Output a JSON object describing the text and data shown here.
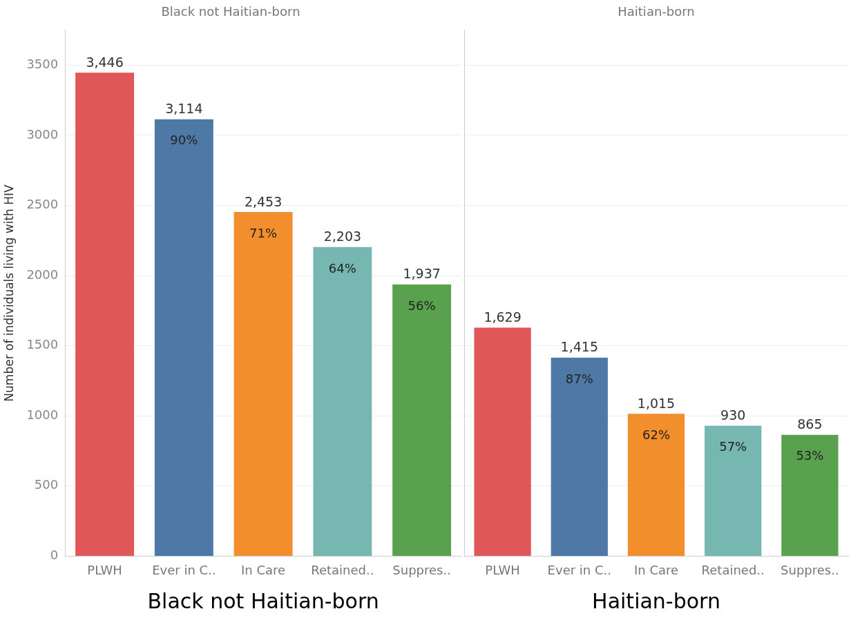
{
  "chart_data": [
    {
      "type": "bar",
      "title": "Black not Haitian-born",
      "xlabel": "Black not Haitian-born",
      "ylabel": "Number of individuals living with HIV",
      "categories": [
        "PLWH",
        "Ever in C..",
        "In Care",
        "Retained..",
        "Suppres.."
      ],
      "values": [
        3446,
        3114,
        2453,
        2203,
        1937
      ],
      "colors": [
        "#e15759",
        "#4e79a7",
        "#f28e2b",
        "#76b7b2",
        "#59a14f"
      ],
      "value_labels": [
        "3,446",
        "3,114",
        "2,453",
        "2,203",
        "1,937"
      ],
      "annotations": [
        {
          "text": "90%",
          "x": "Ever in C..",
          "y": 3114
        },
        {
          "text": "71%",
          "x": "In Care",
          "y": 2453
        },
        {
          "text": "64%",
          "x": "Retained..",
          "y": 2203
        },
        {
          "text": "56%",
          "x": "Suppres..",
          "y": 1937
        }
      ],
      "ylim": [
        0,
        3750
      ],
      "yticks": [
        0,
        500,
        1000,
        1500,
        2000,
        2500,
        3000,
        3500
      ],
      "grid": "y"
    },
    {
      "type": "bar",
      "title": "Haitian-born",
      "xlabel": "Haitian-born",
      "categories": [
        "PLWH",
        "Ever in C..",
        "In Care",
        "Retained..",
        "Suppres.."
      ],
      "values": [
        1629,
        1415,
        1015,
        930,
        865
      ],
      "colors": [
        "#e15759",
        "#4e79a7",
        "#f28e2b",
        "#76b7b2",
        "#59a14f"
      ],
      "value_labels": [
        "1,629",
        "1,415",
        "1,015",
        "930",
        "865"
      ],
      "annotations": [
        {
          "text": "87%",
          "x": "Ever in C..",
          "y": 1415
        },
        {
          "text": "62%",
          "x": "In Care",
          "y": 1015
        },
        {
          "text": "57%",
          "x": "Retained..",
          "y": 930
        },
        {
          "text": "53%",
          "x": "Suppres..",
          "y": 865
        }
      ],
      "ylim": [
        0,
        3750
      ],
      "yticks": [
        0,
        500,
        1000,
        1500,
        2000,
        2500,
        3000,
        3500
      ],
      "grid": "y",
      "tick_labels": "x"
    }
  ]
}
